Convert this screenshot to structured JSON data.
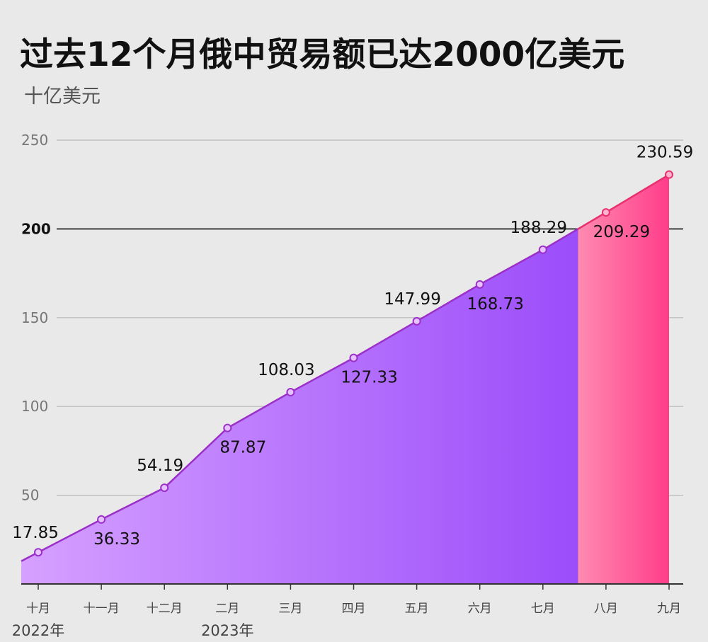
{
  "title": "过去12个月俄中贸易额已达2000亿美元",
  "unit_label": "十亿美元",
  "chart_data": {
    "type": "area",
    "title": "过去12个月俄中贸易额已达2000亿美元",
    "ylabel": "十亿美元",
    "ylim": [
      0,
      250
    ],
    "yticks": [
      50,
      100,
      150,
      200,
      250
    ],
    "highlight_tick": 200,
    "categories": [
      "十月",
      "十一月",
      "十二月",
      "二月",
      "三月",
      "四月",
      "五月",
      "六月",
      "七月",
      "八月",
      "九月"
    ],
    "year_labels": [
      {
        "index": 0,
        "text": "2022年"
      },
      {
        "index": 3,
        "text": "2023年"
      }
    ],
    "values": [
      17.85,
      36.33,
      54.19,
      87.87,
      108.03,
      127.33,
      147.99,
      168.73,
      188.29,
      209.29,
      230.59
    ],
    "label_positions": [
      "above",
      "below",
      "above",
      "below",
      "above",
      "below",
      "above",
      "below",
      "above",
      "below",
      "above"
    ],
    "colors": {
      "area_start": "#d6a0ff",
      "area_end": "#9b4dfa",
      "line": "#9b30c8",
      "highlight_start": "#ff8ab0",
      "highlight_end": "#ff3d8a",
      "highlight_line": "#e8306e"
    }
  }
}
